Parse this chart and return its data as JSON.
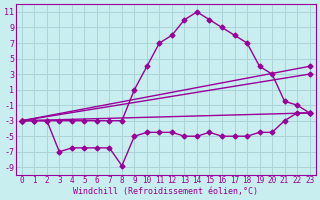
{
  "xlabel": "Windchill (Refroidissement éolien,°C)",
  "ylabel_ticks": [
    "-9",
    "-7",
    "-5",
    "-3",
    "-1",
    "1",
    "3",
    "5",
    "7",
    "9",
    "11"
  ],
  "yticks": [
    -9,
    -7,
    -5,
    -3,
    -1,
    1,
    3,
    5,
    7,
    9,
    11
  ],
  "ylim": [
    -10,
    12
  ],
  "xlim": [
    -0.5,
    23.5
  ],
  "xticks": [
    0,
    1,
    2,
    3,
    4,
    5,
    6,
    7,
    8,
    9,
    10,
    11,
    12,
    13,
    14,
    15,
    16,
    17,
    18,
    19,
    20,
    21,
    22,
    23
  ],
  "background_color": "#c8eef0",
  "grid_color": "#aad4d8",
  "line_color": "#990099",
  "series": [
    {
      "x": [
        0,
        1,
        2,
        3,
        4,
        5,
        6,
        7,
        8,
        9,
        10,
        11,
        12,
        13,
        14,
        15,
        16,
        17,
        18,
        19,
        20,
        21,
        22,
        23
      ],
      "y": [
        -3,
        -3,
        -3,
        -7,
        -6.5,
        -6.5,
        -6.5,
        -6.5,
        -8.8,
        -5,
        -4.5,
        -4.5,
        -4.5,
        -5,
        -5,
        -4.5,
        -5,
        -5,
        -5,
        -4.5,
        -4.5,
        -3,
        -2,
        -2
      ],
      "marker": "D",
      "markersize": 2.5,
      "linewidth": 1.0
    },
    {
      "x": [
        0,
        23
      ],
      "y": [
        -3,
        -2
      ],
      "marker": "D",
      "markersize": 2.5,
      "linewidth": 1.0
    },
    {
      "x": [
        0,
        23
      ],
      "y": [
        -3,
        3
      ],
      "marker": "D",
      "markersize": 2.5,
      "linewidth": 1.0
    },
    {
      "x": [
        0,
        23
      ],
      "y": [
        -3,
        4
      ],
      "marker": "D",
      "markersize": 2.5,
      "linewidth": 1.0
    },
    {
      "x": [
        0,
        1,
        2,
        3,
        4,
        5,
        6,
        7,
        8,
        9,
        10,
        11,
        12,
        13,
        14,
        15,
        16,
        17,
        18,
        19,
        20,
        21,
        22,
        23
      ],
      "y": [
        -3,
        -3,
        -3,
        -3,
        -3,
        -3,
        -3,
        -3,
        -3,
        1,
        4,
        7,
        8,
        10,
        11,
        10,
        9,
        8,
        7,
        4,
        3,
        -0.5,
        -1,
        -2
      ],
      "marker": "D",
      "markersize": 2.5,
      "linewidth": 1.0
    }
  ]
}
